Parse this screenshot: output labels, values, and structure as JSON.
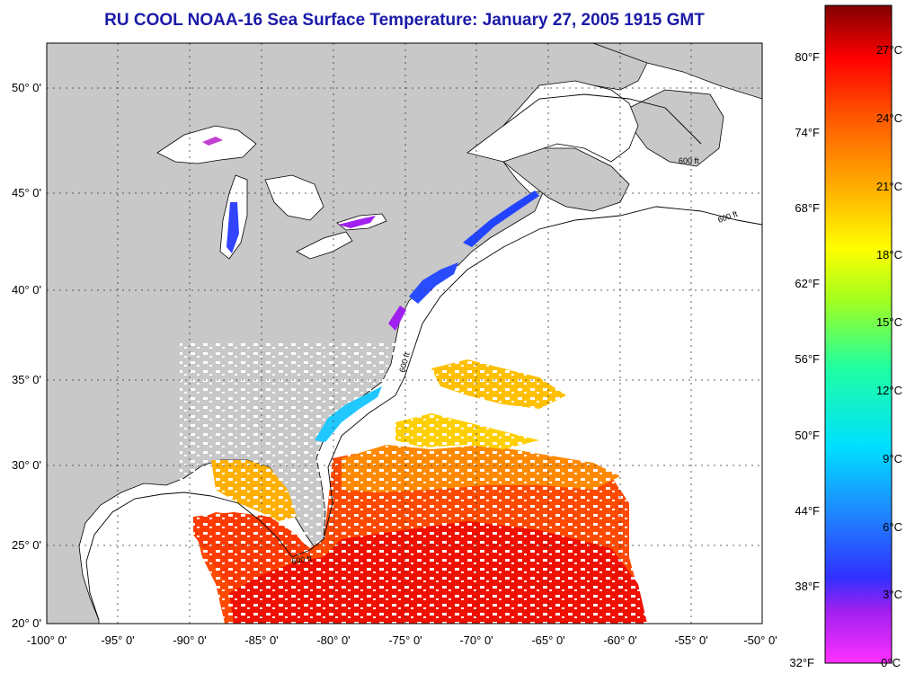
{
  "title": "RU COOL  NOAA-16  Sea Surface Temperature:  January 27, 2005 1915 GMT",
  "axes": {
    "lat_ticks": [
      "50° 0'",
      "45° 0'",
      "40° 0'",
      "35° 0'",
      "30° 0'",
      "25° 0'",
      "20° 0'"
    ],
    "lon_ticks": [
      "-100° 0'",
      "-95° 0'",
      "-90° 0'",
      "-85° 0'",
      "-80° 0'",
      "-75° 0'",
      "-70° 0'",
      "-65° 0'",
      "-60° 0'",
      "-55° 0'",
      "-50° 0'"
    ]
  },
  "contour_label": "600 ft",
  "colorbar": {
    "fahrenheit": [
      "80°F",
      "74°F",
      "68°F",
      "62°F",
      "56°F",
      "50°F",
      "44°F",
      "38°F",
      "32°F"
    ],
    "celsius": [
      "27°C",
      "24°C",
      "21°C",
      "18°C",
      "15°C",
      "12°C",
      "9°C",
      "6°C",
      "3°C",
      "0°C"
    ]
  },
  "colors": {
    "land": "#c8c8c8",
    "no_data": "#ffffff",
    "title": "#1a1aa8"
  }
}
